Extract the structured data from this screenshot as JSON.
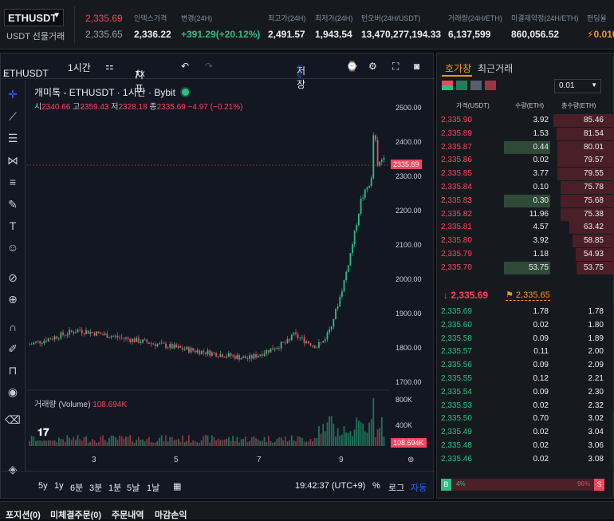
{
  "header": {
    "symbol": "ETHUSDT",
    "market": "USDT 선물거래",
    "last_price": "2,335.69",
    "mark_price": "2,335.65",
    "stats": [
      {
        "label": "인덱스가격",
        "value": "2,336.22",
        "color": "normal"
      },
      {
        "label": "변경(24H)",
        "value": "+391.29(+20.12%)",
        "color": "green"
      },
      {
        "label": "최고가(24H)",
        "value": "2,491.57",
        "color": "normal"
      },
      {
        "label": "최저가(24H)",
        "value": "1,943.54",
        "color": "normal"
      },
      {
        "label": "턴오버(24H/USDT)",
        "value": "13,470,277,194.33",
        "color": "normal"
      },
      {
        "label": "거래량(24H/ETH)",
        "value": "6,137,599",
        "color": "normal"
      },
      {
        "label": "미결제약정(24H/ETH)",
        "value": "860,056.52",
        "color": "normal"
      },
      {
        "label": "펀딩율",
        "value": "0.010",
        "color": "orange"
      }
    ]
  },
  "toolbar": {
    "symbol": "ETHUSDT",
    "interval": "1시간",
    "indicator": "지표",
    "save": "저장",
    "save_sub": "저장"
  },
  "legend": {
    "title": "개미톡 - ETHUSDT · 1시간 · Bybit",
    "o_label": "시",
    "o": "2340.66",
    "h_label": "고",
    "h": "2359.43",
    "l_label": "저",
    "l": "2328.18",
    "c_label": "종",
    "c": "2335.69",
    "chg": "−4.97 (−0.21%)"
  },
  "y_axis": [
    "2500.00",
    "2400.00",
    "2300.00",
    "2200.00",
    "2100.00",
    "2000.00",
    "1900.00",
    "1800.00",
    "1700.00"
  ],
  "price_tag": "2335.69",
  "volume": {
    "label": "거래량 (Volume)",
    "value": "108.694K",
    "axis": [
      "800K",
      "400K"
    ]
  },
  "x_axis": [
    "3",
    "5",
    "7",
    "9"
  ],
  "bottom": {
    "ranges": [
      "5y",
      "1y",
      "6분",
      "3분",
      "1분",
      "5날",
      "1날"
    ],
    "time": "19:42:37 (UTC+9)",
    "percent": "%",
    "log": "로그",
    "auto": "자동"
  },
  "orderbook": {
    "tab_active": "호가창",
    "tab2": "최근거래",
    "precision": "0.01",
    "headers": [
      "가격(USDT)",
      "수량(ETH)",
      "총수량(ETH)"
    ],
    "asks": [
      [
        "2,335.90",
        "3.92",
        "85.46"
      ],
      [
        "2,335.89",
        "1.53",
        "81.54"
      ],
      [
        "2,335.87",
        "0.44",
        "80.01"
      ],
      [
        "2,335.86",
        "0.02",
        "79.57"
      ],
      [
        "2,335.85",
        "3.77",
        "79.55"
      ],
      [
        "2,335.84",
        "0.10",
        "75.78"
      ],
      [
        "2,335.83",
        "0.30",
        "75.68"
      ],
      [
        "2,335.82",
        "11.96",
        "75.38"
      ],
      [
        "2,335.81",
        "4.57",
        "63.42"
      ],
      [
        "2,335.80",
        "3.92",
        "58.85"
      ],
      [
        "2,335.79",
        "1.18",
        "54.93"
      ],
      [
        "2,335.70",
        "53.75",
        "53.75"
      ]
    ],
    "mid_price": "2,335.69",
    "mid_mark": "2,335.65",
    "bids": [
      [
        "2,335.69",
        "1.78",
        "1.78"
      ],
      [
        "2,335.60",
        "0.02",
        "1.80"
      ],
      [
        "2,335.58",
        "0.09",
        "1.89"
      ],
      [
        "2,335.57",
        "0.11",
        "2.00"
      ],
      [
        "2,335.56",
        "0.09",
        "2.09"
      ],
      [
        "2,335.55",
        "0.12",
        "2.21"
      ],
      [
        "2,335.54",
        "0.09",
        "2.30"
      ],
      [
        "2,335.53",
        "0.02",
        "2.32"
      ],
      [
        "2,335.50",
        "0.70",
        "3.02"
      ],
      [
        "2,335.49",
        "0.02",
        "3.04"
      ],
      [
        "2,335.48",
        "0.02",
        "3.06"
      ],
      [
        "2,335.46",
        "0.02",
        "3.08"
      ]
    ],
    "buy_pct": "4%",
    "sell_pct": "96%",
    "buy_letter": "B",
    "sell_letter": "S",
    "buy_ratio": 0.04
  },
  "bottom_tabs": [
    "포지션(0)",
    "미체결주문(0)",
    "주문내역",
    "마감손익"
  ],
  "colors": {
    "up": "#2ebd85",
    "down": "#f6465d",
    "bg": "#131722"
  }
}
